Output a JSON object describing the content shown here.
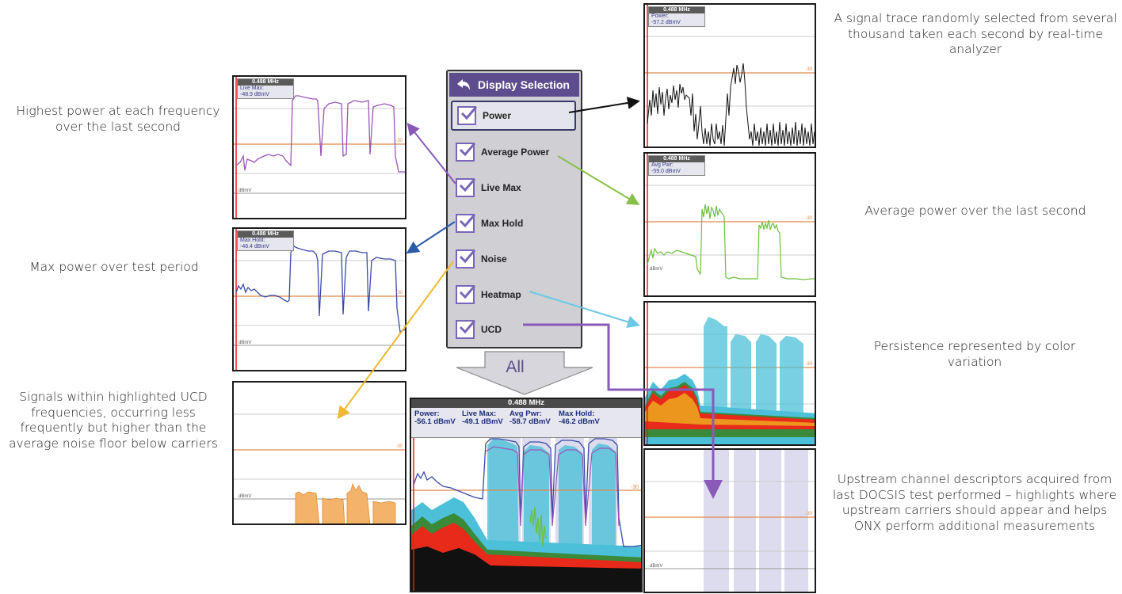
{
  "menu": {
    "title": "Display Selection",
    "items": [
      {
        "label": "Power",
        "checked": true,
        "selected": true
      },
      {
        "label": "Average Power",
        "checked": true
      },
      {
        "label": "Live Max",
        "checked": true
      },
      {
        "label": "Max Hold",
        "checked": true
      },
      {
        "label": "Noise",
        "checked": true
      },
      {
        "label": "Heatmap",
        "checked": true
      },
      {
        "label": "UCD",
        "checked": true
      }
    ],
    "all_label": "All"
  },
  "captions": {
    "live_max": "Highest power at each frequency over the last second",
    "max_hold": "Max power over test period",
    "noise": "Signals within highlighted UCD frequencies, occurring less frequently but higher than the average noise floor below carriers",
    "power": "A signal trace randomly selected from several thousand taken each second by real-time analyzer",
    "avg_power": "Average power over the last second",
    "heatmap": "Persistence represented by color variation",
    "ucd": "Upstream channel descriptors acquired from last DOCSIS test performed – highlights where upstream carriers should appear and helps ONX perform additional measurements"
  },
  "panels": {
    "live_max": {
      "mhz": "0.488 MHz",
      "label": "Live Max:",
      "value": "-48.9 dBmV",
      "ref": "-30",
      "unit": "dBmV"
    },
    "max_hold": {
      "mhz": "0.488 MHz",
      "label": "Max Hold:",
      "value": "-46.4 dBmV",
      "ref": "-30",
      "unit": "dBmV"
    },
    "noise": {
      "ref": "-30",
      "unit": "dBmV"
    },
    "power": {
      "mhz": "0.488 MHz",
      "label": "Power:",
      "value": "-57.2 dBmV",
      "ref": "-30"
    },
    "avg_power": {
      "mhz": "0.488 MHz",
      "label": "Avg Pwr:",
      "value": "-59.0 dBmV",
      "ref": "-30",
      "unit": "dBmV"
    },
    "heatmap": {
      "ref": "-30"
    },
    "ucd": {
      "ref": "-30",
      "unit": "dBmV"
    }
  },
  "combined": {
    "mhz": "0.488 MHz",
    "cols": [
      {
        "label": "Power:",
        "value": "-56.1 dBmV"
      },
      {
        "label": "Live Max:",
        "value": "-49.1 dBmV"
      },
      {
        "label": "Avg Pwr:",
        "value": "-58.7 dBmV"
      },
      {
        "label": "Max Hold:",
        "value": "-46.2 dBmV"
      }
    ],
    "ref": "-30"
  },
  "colors": {
    "menu_header": "#5e4d8e",
    "checkbox": "#7a66b8",
    "live_max": "#9a55b8",
    "max_hold": "#3a4aa8",
    "avg_power": "#6cc03c",
    "heatmap": "#4cc0d8",
    "noise": "#f4b36a",
    "ucd_band": "#dcdcee",
    "ref_line": "#e08a50",
    "marker": "#e02020",
    "arrow_black": "#111111",
    "arrow_purple": "#8a5ab8",
    "arrow_green": "#8ac04a",
    "arrow_blue": "#2a5aa8",
    "arrow_yellow": "#f0b830",
    "arrow_cyan": "#6cc8e4"
  }
}
